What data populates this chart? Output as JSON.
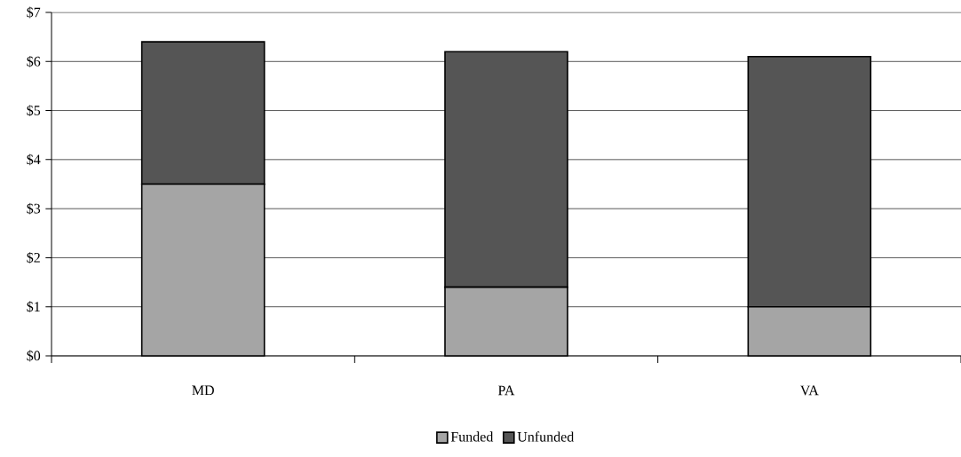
{
  "chart_data": {
    "type": "bar",
    "stacked": true,
    "categories": [
      "MD",
      "PA",
      "VA"
    ],
    "series": [
      {
        "name": "Funded",
        "color": "#a5a5a5",
        "values": [
          3.5,
          1.4,
          1.0
        ]
      },
      {
        "name": "Unfunded",
        "color": "#555555",
        "values": [
          2.9,
          4.8,
          5.1
        ]
      }
    ],
    "ylim": [
      0,
      7
    ],
    "yticks": [
      {
        "value": 0,
        "label": "$0"
      },
      {
        "value": 1,
        "label": "$1"
      },
      {
        "value": 2,
        "label": "$2"
      },
      {
        "value": 3,
        "label": "$3"
      },
      {
        "value": 4,
        "label": "$4"
      },
      {
        "value": 5,
        "label": "$5"
      },
      {
        "value": 6,
        "label": "$6"
      },
      {
        "value": 7,
        "label": "$7"
      }
    ],
    "grid": "y",
    "legend": "bottom"
  }
}
